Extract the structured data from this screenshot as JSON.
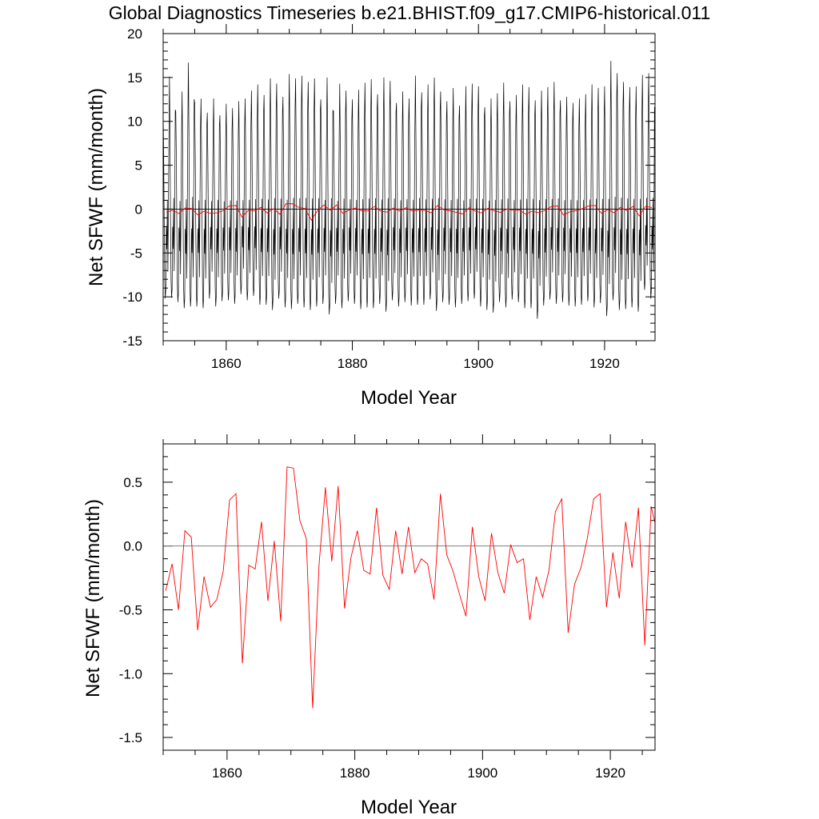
{
  "title": "Global Diagnostics Timeseries b.e21.BHIST.f09_g17.CMIP6-historical.011",
  "chart_data": [
    {
      "type": "line",
      "xlabel": "Model Year",
      "ylabel": "Net SFWF (mm/month)",
      "xlim": [
        1850,
        1928
      ],
      "ylim": [
        -15,
        20
      ],
      "x_ticks": [
        1860,
        1880,
        1900,
        1920
      ],
      "y_ticks": [
        -15,
        -10,
        -5,
        0,
        5,
        10,
        15,
        20
      ],
      "y_tick_labels": [
        "-15",
        "-10",
        "-5",
        "0",
        "5",
        "10",
        "15",
        "20"
      ],
      "reference_line": 0,
      "series": [
        {
          "color": "#000000",
          "resolution": "monthly",
          "start_year": 1850,
          "annual_cycle": [
            12.0,
            6.5,
            -1.5,
            -8.0,
            -10.0,
            -9.0,
            -2.0,
            -4.5,
            1.0,
            -7.0,
            0.5,
            9.0
          ],
          "yearly_peak": [
            11.2,
            15.1,
            11.1,
            13.4,
            16.7,
            12.1,
            12.6,
            11.0,
            12.6,
            10.7,
            12.0,
            11.5,
            12.3,
            12.6,
            13.5,
            14.2,
            13.0,
            14.9,
            14.3,
            12.8,
            15.4,
            14.9,
            15.2,
            14.5,
            14.9,
            12.5,
            15.0,
            11.2,
            14.3,
            13.5,
            12.5,
            13.6,
            14.4,
            14.8,
            13.1,
            15.0,
            14.6,
            12.1,
            13.4,
            12.6,
            15.2,
            13.3,
            14.2,
            15.0,
            13.4,
            12.3,
            13.8,
            11.8,
            14.0,
            14.3,
            14.0,
            11.6,
            12.6,
            13.2,
            14.4,
            12.3,
            13.0,
            14.2,
            13.9,
            12.4,
            13.5,
            13.9,
            14.5,
            12.4,
            12.8,
            12.1,
            12.6,
            13.1,
            14.2,
            13.8,
            14.0,
            16.9,
            15.5,
            14.5,
            13.9,
            14.0,
            15.3,
            15.5
          ],
          "yearly_trough": [
            -10.2,
            -10.1,
            -10.6,
            -11.3,
            -11.1,
            -11.1,
            -11.3,
            -10.2,
            -11.1,
            -10.5,
            -10.4,
            -10.8,
            -9.7,
            -10.4,
            -9.9,
            -10.9,
            -10.9,
            -11.5,
            -10.2,
            -11.2,
            -11.4,
            -10.8,
            -11.2,
            -11.5,
            -11.1,
            -10.8,
            -12.0,
            -10.8,
            -11.3,
            -10.5,
            -10.8,
            -11.4,
            -11.2,
            -11.3,
            -10.8,
            -11.7,
            -10.4,
            -11.1,
            -10.6,
            -11.0,
            -10.9,
            -10.9,
            -10.3,
            -11.6,
            -10.6,
            -10.9,
            -11.2,
            -10.8,
            -10.5,
            -10.2,
            -11.1,
            -11.5,
            -11.8,
            -10.6,
            -11.2,
            -10.3,
            -10.6,
            -11.3,
            -11.3,
            -12.5,
            -11.0,
            -10.3,
            -10.8,
            -10.6,
            -11.0,
            -11.1,
            -10.9,
            -10.5,
            -11.2,
            -10.7,
            -12.2,
            -10.4,
            -11.5,
            -11.4,
            -11.2,
            -11.7,
            -9.2,
            -10.2
          ]
        },
        {
          "color": "#ff0000",
          "resolution": "annual",
          "x": [
            1850,
            1851,
            1852,
            1853,
            1854,
            1855,
            1856,
            1857,
            1858,
            1859,
            1860,
            1861,
            1862,
            1863,
            1864,
            1865,
            1866,
            1867,
            1868,
            1869,
            1870,
            1871,
            1872,
            1873,
            1874,
            1875,
            1876,
            1877,
            1878,
            1879,
            1880,
            1881,
            1882,
            1883,
            1884,
            1885,
            1886,
            1887,
            1888,
            1889,
            1890,
            1891,
            1892,
            1893,
            1894,
            1895,
            1896,
            1897,
            1898,
            1899,
            1900,
            1901,
            1902,
            1903,
            1904,
            1905,
            1906,
            1907,
            1908,
            1909,
            1910,
            1911,
            1912,
            1913,
            1914,
            1915,
            1916,
            1917,
            1918,
            1919,
            1920,
            1921,
            1922,
            1923,
            1924,
            1925,
            1926,
            1927
          ],
          "values": [
            -0.35,
            -0.14,
            -0.5,
            0.12,
            0.07,
            -0.66,
            -0.24,
            -0.48,
            -0.42,
            -0.2,
            0.36,
            0.41,
            -0.92,
            -0.15,
            -0.18,
            0.19,
            -0.43,
            0.04,
            -0.59,
            0.62,
            0.61,
            0.2,
            0.06,
            -1.27,
            -0.15,
            0.46,
            -0.12,
            0.47,
            -0.49,
            -0.09,
            0.12,
            -0.19,
            -0.22,
            0.3,
            -0.23,
            -0.34,
            0.12,
            -0.22,
            0.15,
            -0.21,
            -0.1,
            -0.14,
            -0.42,
            0.41,
            -0.07,
            -0.2,
            -0.38,
            -0.55,
            0.15,
            -0.24,
            -0.43,
            0.1,
            -0.21,
            -0.37,
            0.01,
            -0.13,
            -0.1,
            -0.58,
            -0.24,
            -0.4,
            -0.19,
            0.27,
            0.37,
            -0.68,
            -0.3,
            -0.17,
            0.06,
            0.37,
            0.41,
            -0.48,
            -0.05,
            -0.41,
            0.19,
            -0.17,
            0.3,
            -0.78,
            0.31,
            0.18
          ]
        }
      ]
    },
    {
      "type": "line",
      "xlabel": "Model Year",
      "ylabel": "Net SFWF (mm/month)",
      "xlim": [
        1850,
        1927
      ],
      "ylim": [
        -1.6,
        0.8
      ],
      "x_ticks": [
        1860,
        1880,
        1900,
        1920
      ],
      "y_ticks": [
        -1.5,
        -1.0,
        -0.5,
        0.0,
        0.5
      ],
      "y_tick_labels": [
        "-1.5",
        "-1.0",
        "-0.5",
        "0.0",
        "0.5"
      ],
      "reference_line": 0,
      "series": [
        {
          "color": "#ff0000",
          "resolution": "annual",
          "x": [
            1850,
            1851,
            1852,
            1853,
            1854,
            1855,
            1856,
            1857,
            1858,
            1859,
            1860,
            1861,
            1862,
            1863,
            1864,
            1865,
            1866,
            1867,
            1868,
            1869,
            1870,
            1871,
            1872,
            1873,
            1874,
            1875,
            1876,
            1877,
            1878,
            1879,
            1880,
            1881,
            1882,
            1883,
            1884,
            1885,
            1886,
            1887,
            1888,
            1889,
            1890,
            1891,
            1892,
            1893,
            1894,
            1895,
            1896,
            1897,
            1898,
            1899,
            1900,
            1901,
            1902,
            1903,
            1904,
            1905,
            1906,
            1907,
            1908,
            1909,
            1910,
            1911,
            1912,
            1913,
            1914,
            1915,
            1916,
            1917,
            1918,
            1919,
            1920,
            1921,
            1922,
            1923,
            1924,
            1925,
            1926,
            1927
          ],
          "values": [
            -0.35,
            -0.14,
            -0.5,
            0.12,
            0.07,
            -0.66,
            -0.24,
            -0.48,
            -0.42,
            -0.2,
            0.36,
            0.41,
            -0.92,
            -0.15,
            -0.18,
            0.19,
            -0.43,
            0.04,
            -0.59,
            0.62,
            0.61,
            0.2,
            0.06,
            -1.27,
            -0.15,
            0.46,
            -0.12,
            0.47,
            -0.49,
            -0.09,
            0.12,
            -0.19,
            -0.22,
            0.3,
            -0.23,
            -0.34,
            0.12,
            -0.22,
            0.15,
            -0.21,
            -0.1,
            -0.14,
            -0.42,
            0.41,
            -0.07,
            -0.2,
            -0.38,
            -0.55,
            0.15,
            -0.24,
            -0.43,
            0.1,
            -0.21,
            -0.37,
            0.01,
            -0.13,
            -0.1,
            -0.58,
            -0.24,
            -0.4,
            -0.19,
            0.27,
            0.37,
            -0.68,
            -0.3,
            -0.17,
            0.06,
            0.37,
            0.41,
            -0.48,
            -0.05,
            -0.41,
            0.19,
            -0.17,
            0.3,
            -0.78,
            0.31,
            0.18
          ]
        }
      ]
    }
  ]
}
